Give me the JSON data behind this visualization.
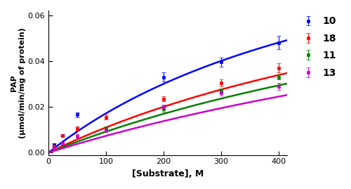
{
  "title": "",
  "xlabel": "[Substrate], M",
  "ylabel": "PAP\n(µmol/min/mg of protein)",
  "xlim": [
    0,
    415
  ],
  "ylim": [
    -0.001,
    0.062
  ],
  "xticks": [
    0,
    100,
    200,
    300,
    400
  ],
  "yticks": [
    0.0,
    0.02,
    0.04,
    0.06
  ],
  "series": [
    {
      "label": "10",
      "color": "#0000FF",
      "Km": 600,
      "Vmax": 0.12,
      "data_x": [
        10,
        25,
        50,
        200,
        300,
        400
      ],
      "data_y": [
        0.0035,
        0.0075,
        0.0165,
        0.033,
        0.0395,
        0.048
      ],
      "yerr": [
        0.0005,
        0.0005,
        0.001,
        0.002,
        0.002,
        0.003
      ]
    },
    {
      "label": "18",
      "color": "#FF0000",
      "Km": 900,
      "Vmax": 0.11,
      "data_x": [
        10,
        25,
        50,
        100,
        200,
        300,
        400
      ],
      "data_y": [
        0.003,
        0.0075,
        0.0105,
        0.0155,
        0.0235,
        0.0305,
        0.037
      ],
      "yerr": [
        0.0005,
        0.0005,
        0.001,
        0.001,
        0.001,
        0.0015,
        0.002
      ]
    },
    {
      "label": "11",
      "color": "#008000",
      "Km": 1100,
      "Vmax": 0.11,
      "data_x": [
        100,
        200,
        300,
        400
      ],
      "data_y": [
        0.0105,
        0.019,
        0.027,
        0.033
      ],
      "yerr": [
        0.001,
        0.001,
        0.001,
        0.001
      ]
    },
    {
      "label": "13",
      "color": "#CC00CC",
      "Km": 1400,
      "Vmax": 0.11,
      "data_x": [
        10,
        25,
        50,
        100,
        200,
        300,
        400
      ],
      "data_y": [
        0.002,
        0.004,
        0.007,
        0.01,
        0.02,
        0.026,
        0.029
      ],
      "yerr": [
        0.0005,
        0.0005,
        0.001,
        0.001,
        0.001,
        0.001,
        0.0015
      ]
    }
  ],
  "figsize": [
    5.0,
    2.69
  ],
  "dpi": 100
}
